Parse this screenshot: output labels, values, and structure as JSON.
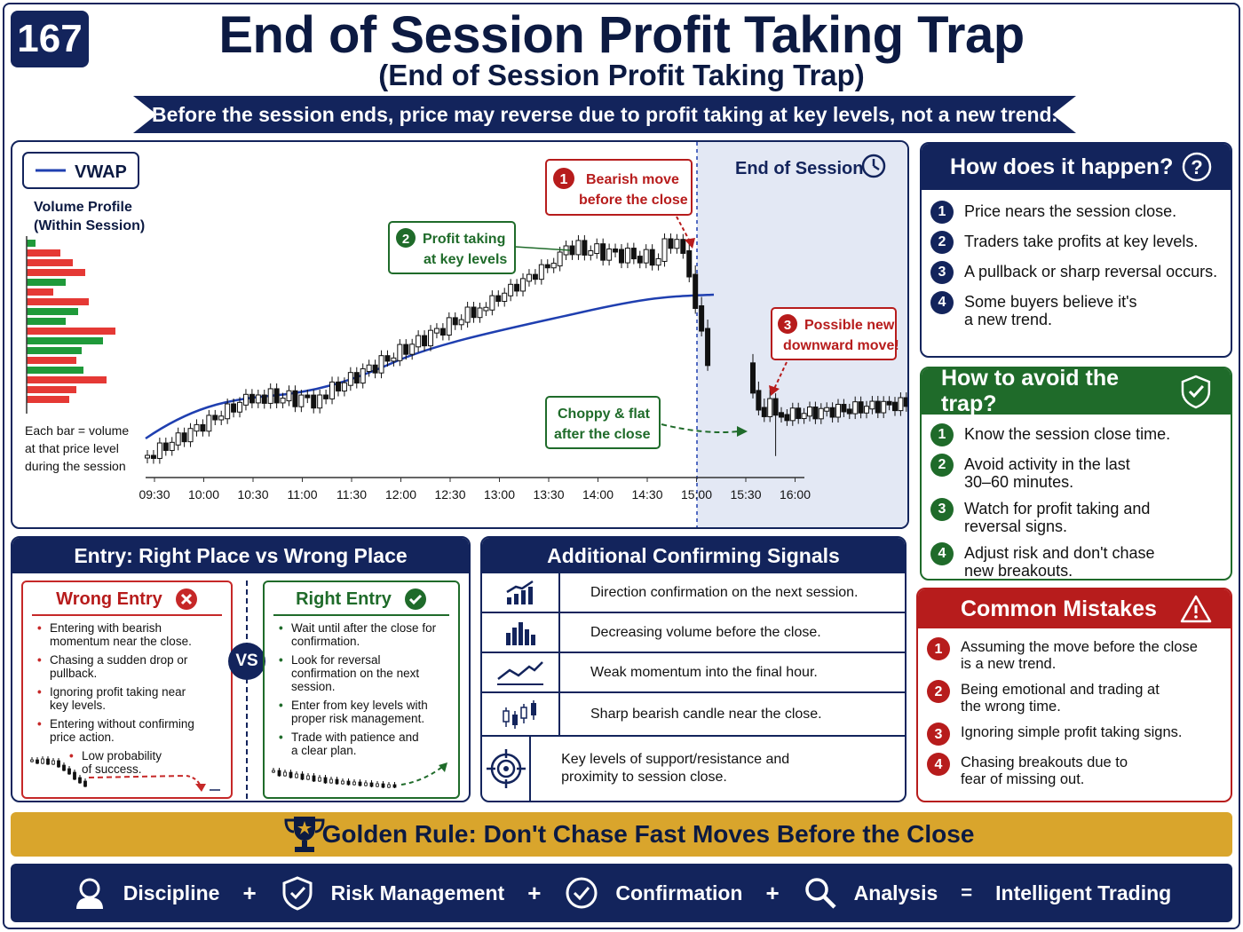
{
  "header": {
    "badge": "167",
    "title": "End of Session Profit Taking Trap",
    "subtitle": "(End of Session Profit Taking Trap)",
    "banner": "Before the session ends, price may reverse due to profit taking at key levels, not a new trend."
  },
  "chart": {
    "legend_vwap": "VWAP",
    "volume_profile_title": "Volume Profile",
    "volume_profile_sub": "(Within Session)",
    "volume_note": [
      "Each bar = volume",
      "at that price level",
      "during the session"
    ],
    "end_of_session": "End of Session",
    "callout1_num": "1",
    "callout1": [
      "Bearish move",
      "before the close"
    ],
    "callout2_num": "2",
    "callout2": [
      "Profit taking",
      "at key levels"
    ],
    "callout3_num": "3",
    "callout3": [
      "Possible new",
      "downward move!"
    ],
    "callout4": [
      "Choppy & flat",
      "after the close"
    ],
    "time_labels": [
      "09:30",
      "10:00",
      "10:30",
      "11:00",
      "11:30",
      "12:00",
      "12:30",
      "13:00",
      "13:30",
      "14:00",
      "14:30",
      "15:00",
      "15:30",
      "16:00"
    ]
  },
  "how": {
    "title": "How does it happen?",
    "items": [
      {
        "num": "1",
        "text": "Price nears the session close."
      },
      {
        "num": "2",
        "text": "Traders take profits at key levels."
      },
      {
        "num": "3",
        "text": "A pullback or sharp reversal occurs."
      },
      {
        "num": "4",
        "text": "Some buyers believe it's a new trend."
      }
    ]
  },
  "avoid": {
    "title": "How to avoid the trap?",
    "items": [
      {
        "num": "1",
        "text": "Know the session close time."
      },
      {
        "num": "2",
        "text": "Avoid activity in the last 30–60 minutes."
      },
      {
        "num": "3",
        "text": "Watch for profit taking and reversal signs."
      },
      {
        "num": "4",
        "text": "Adjust risk and don't chase new breakouts."
      }
    ]
  },
  "mistakes": {
    "title": "Common Mistakes",
    "items": [
      {
        "num": "1",
        "text": "Assuming the move before the close is a new trend."
      },
      {
        "num": "2",
        "text": "Being emotional and trading at the wrong time."
      },
      {
        "num": "3",
        "text": "Ignoring simple profit taking signs."
      },
      {
        "num": "4",
        "text": "Chasing breakouts due to fear of missing out."
      }
    ]
  },
  "entry": {
    "title": "Entry: Right Place vs Wrong Place",
    "vs": "VS",
    "wrong_title": "Wrong Entry",
    "wrong_items": [
      "Entering with bearish momentum near the close.",
      "Chasing a sudden drop or pullback.",
      "Ignoring profit taking near key levels.",
      "Entering without confirming price action.",
      "Low probability of success."
    ],
    "right_title": "Right Entry",
    "right_items": [
      "Wait until after the close for confirmation.",
      "Look for reversal confirmation on the next session.",
      "Enter from key levels with proper risk management.",
      "Trade with patience and a clear plan."
    ]
  },
  "signals": {
    "title": "Additional Confirming Signals",
    "items": [
      {
        "icon": "growth-chart-icon",
        "text": "Direction confirmation on the next session."
      },
      {
        "icon": "volume-bars-icon",
        "text": "Decreasing volume before the close."
      },
      {
        "icon": "momentum-line-icon",
        "text": "Weak momentum into the final hour."
      },
      {
        "icon": "candlestick-icon",
        "text": "Sharp bearish candle near the close."
      },
      {
        "icon": "target-icon",
        "text": "Key levels of support/resistance and proximity to session close."
      }
    ]
  },
  "golden": "Golden Rule: Don't Chase Fast Moves Before the Close",
  "footer": {
    "discipline": "Discipline",
    "risk": "Risk Management",
    "confirmation": "Confirmation",
    "analysis": "Analysis",
    "plus": "+",
    "equals": "=",
    "result": "Intelligent Trading"
  },
  "colors": {
    "navy": "#13245c",
    "green": "#1f6b2a",
    "red": "#b71c1c",
    "gold": "#d9a52c",
    "vwap": "#1f3fb0",
    "session_shade": "#e3e8f4"
  }
}
